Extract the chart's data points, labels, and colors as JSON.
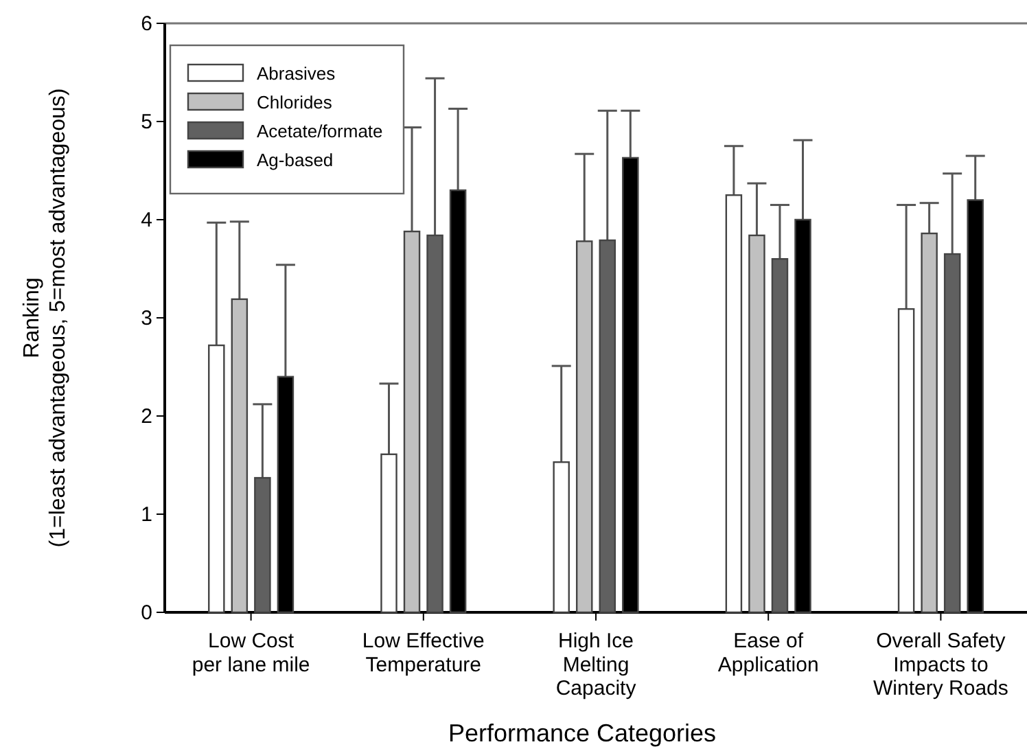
{
  "chart_data": {
    "type": "bar",
    "xlabel": "Performance Categories",
    "ylabel": "Ranking\n(1=least advantageous, 5=most advantageous)",
    "categories": [
      "Low Cost\nper lane mile",
      "Low Effective\nTemperature",
      "High Ice\nMelting\nCapacity",
      "Ease of\nApplication",
      "Overall Safety\nImpacts to\nWintery Roads"
    ],
    "series": [
      {
        "name": "Abrasives",
        "color": "#ffffff",
        "values": [
          2.72,
          1.61,
          1.53,
          4.25,
          3.09
        ],
        "errors": [
          [
            2.72,
            3.97
          ],
          [
            1.61,
            2.33
          ],
          [
            1.53,
            2.51
          ],
          [
            4.25,
            4.75
          ],
          [
            3.09,
            4.15
          ]
        ]
      },
      {
        "name": "Chlorides",
        "color": "#c0c0c0",
        "values": [
          3.19,
          3.88,
          3.78,
          3.84,
          3.86
        ],
        "errors": [
          [
            3.19,
            3.98
          ],
          [
            3.88,
            4.94
          ],
          [
            3.78,
            4.67
          ],
          [
            3.84,
            4.37
          ],
          [
            3.86,
            4.17
          ]
        ]
      },
      {
        "name": "Acetate/formate",
        "color": "#606060",
        "values": [
          1.37,
          3.84,
          3.79,
          3.6,
          3.65
        ],
        "errors": [
          [
            1.37,
            2.12
          ],
          [
            3.84,
            5.44
          ],
          [
            3.79,
            5.11
          ],
          [
            3.6,
            4.15
          ],
          [
            3.65,
            4.47
          ]
        ]
      },
      {
        "name": "Ag-based",
        "color": "#000000",
        "values": [
          2.4,
          4.3,
          4.63,
          4.0,
          4.2
        ],
        "errors": [
          [
            2.4,
            3.54
          ],
          [
            4.3,
            5.13
          ],
          [
            4.63,
            5.11
          ],
          [
            4.0,
            4.81
          ],
          [
            4.2,
            4.65
          ]
        ]
      }
    ],
    "ylim": [
      0,
      6
    ],
    "yticks": [
      0,
      1,
      2,
      3,
      4,
      5,
      6
    ],
    "legend": "top left"
  }
}
